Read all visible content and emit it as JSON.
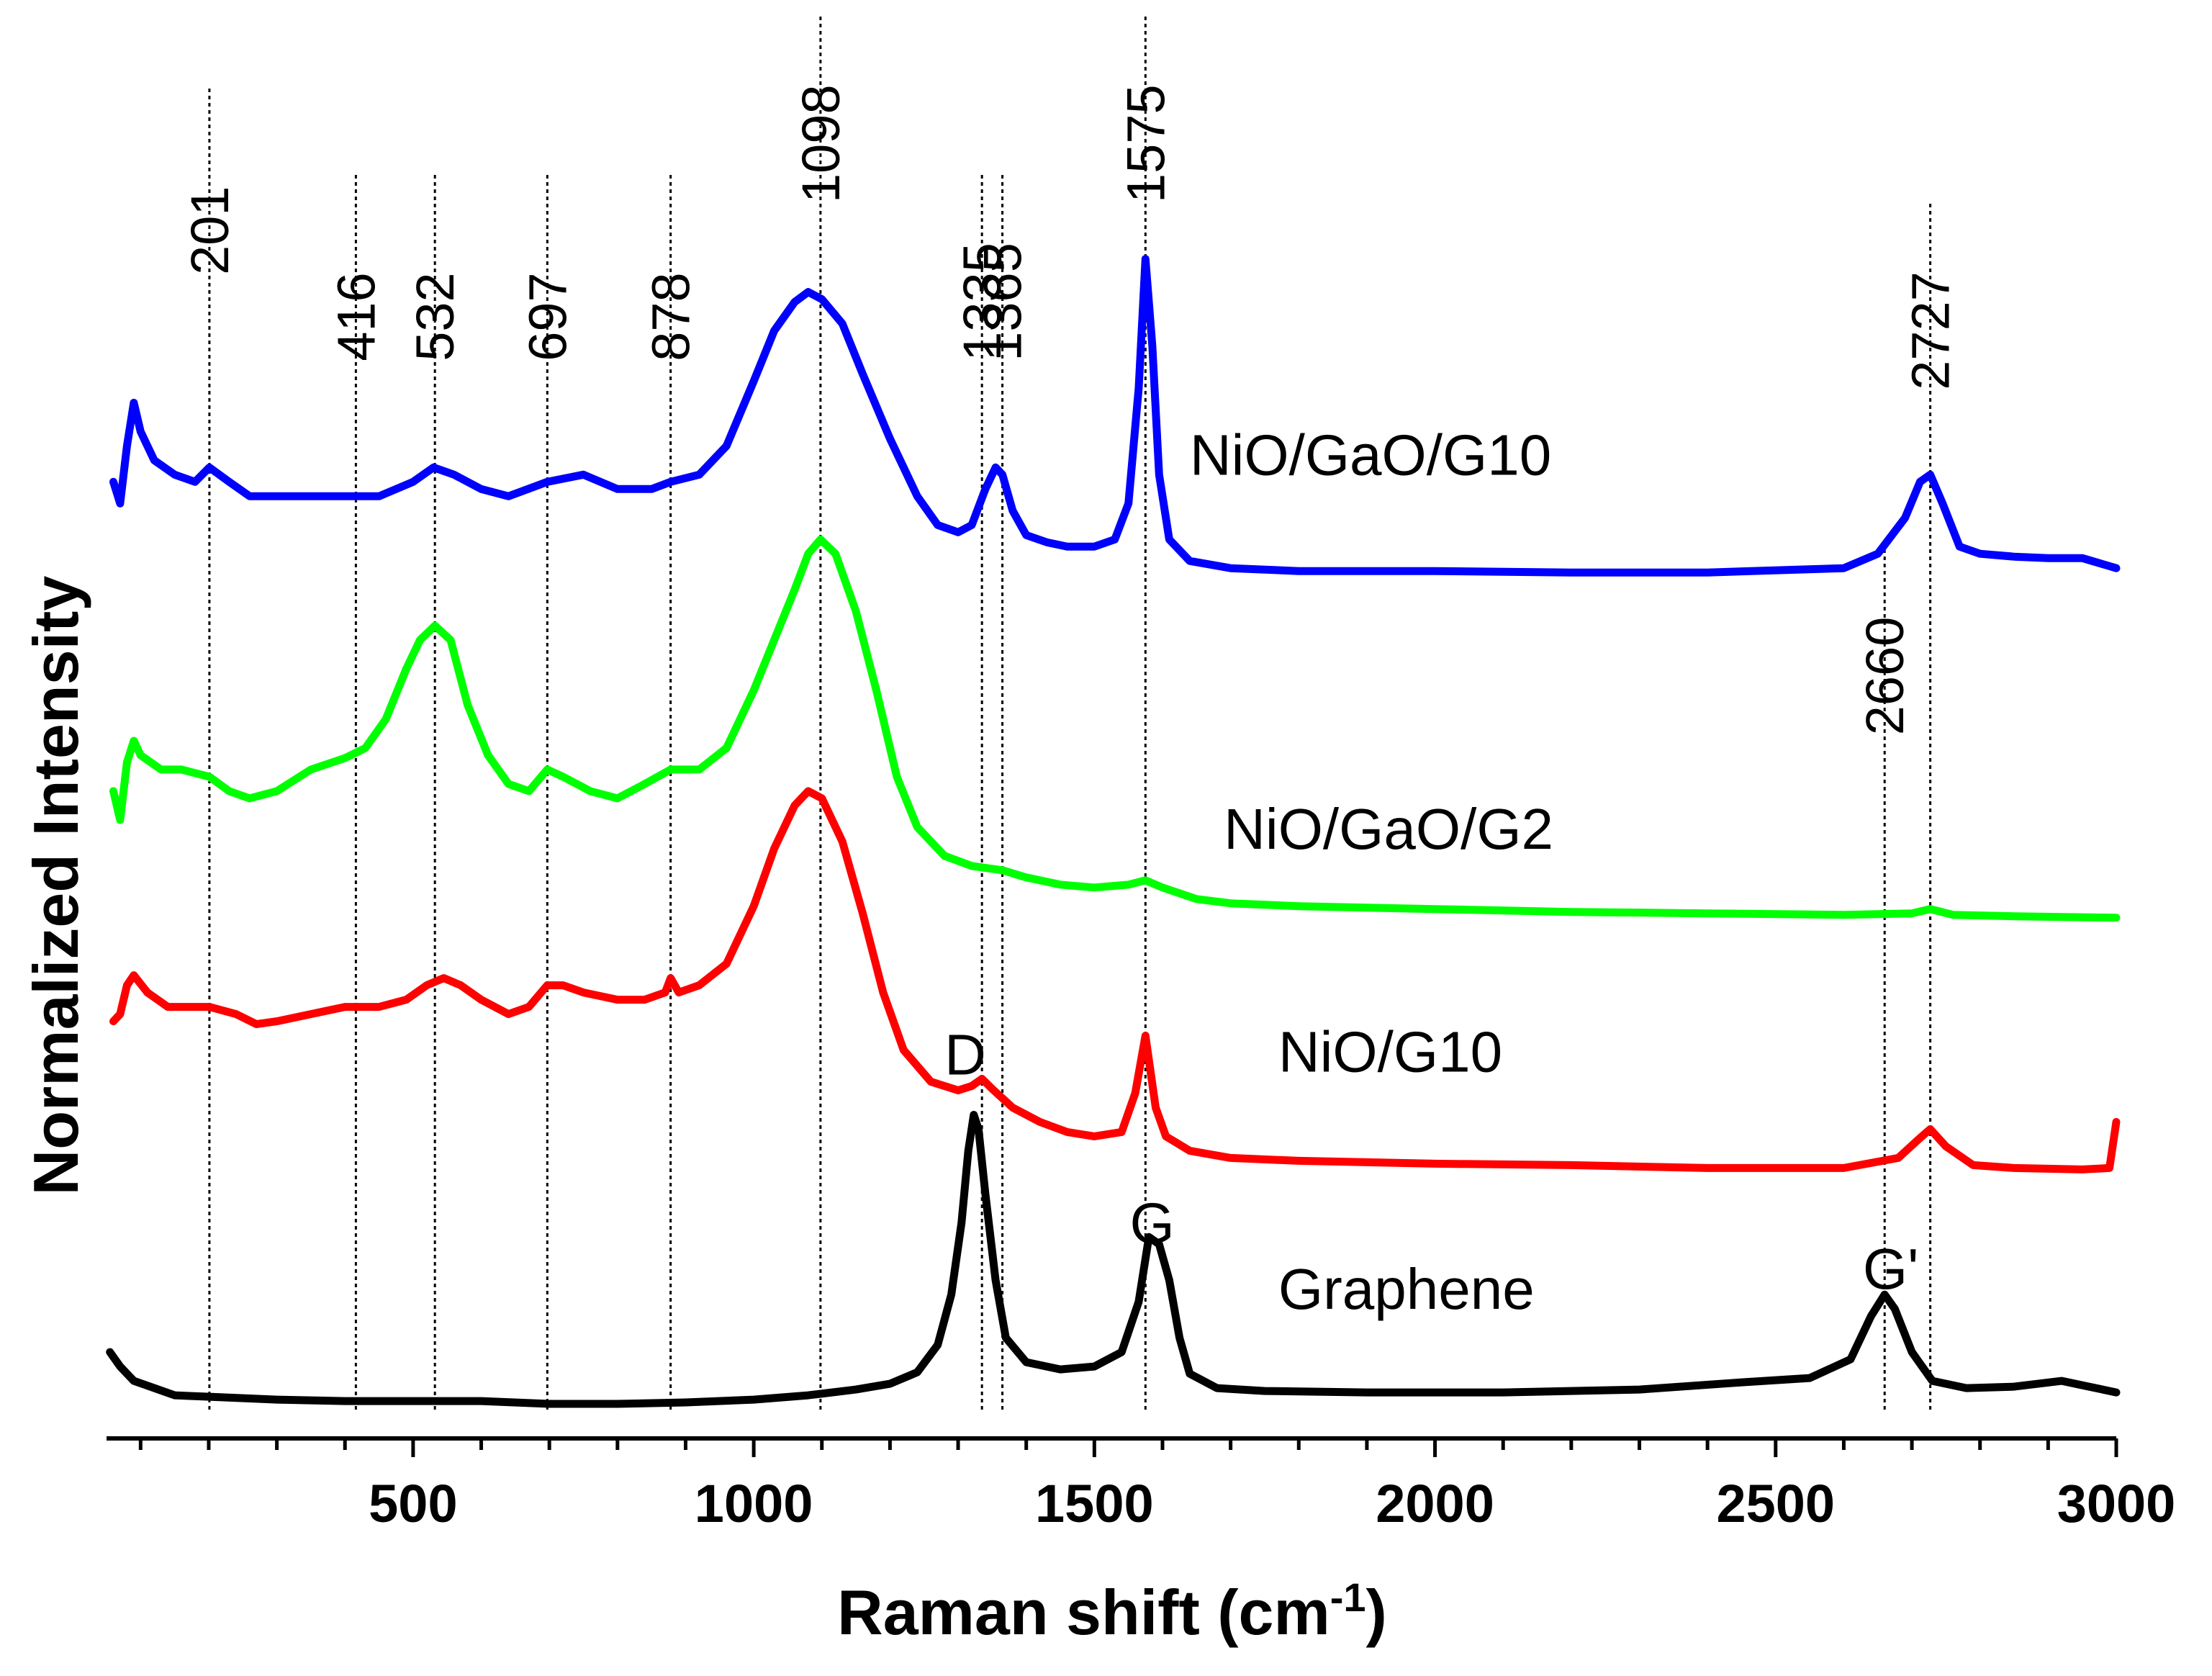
{
  "chart_data": {
    "type": "line",
    "title": "",
    "xlabel": "Raman shift (cm",
    "xlabel_sup": "-1",
    "xlabel_end": ")",
    "ylabel": "Normalized Intensity",
    "xlim": [
      50,
      3000
    ],
    "ylim": [
      0,
      100
    ],
    "x_ticks": [
      500,
      1000,
      1500,
      2000,
      2500,
      3000
    ],
    "x_tick_labels": [
      "500",
      "1000",
      "1500",
      "2000",
      "2500",
      "3000"
    ],
    "x_minor_step": 100,
    "grid": false,
    "colors": {
      "NiO/GaO/G10": "#0000ff",
      "NiO/GaO/G2": "#00ff00",
      "NiO/G10": "#ff0000",
      "Graphene": "#000000"
    },
    "markers": [
      {
        "label": "201",
        "x": 201,
        "top": 94
      },
      {
        "label": "416",
        "x": 416,
        "top": 88
      },
      {
        "label": "532",
        "x": 532,
        "top": 88
      },
      {
        "label": "697",
        "x": 697,
        "top": 88
      },
      {
        "label": "878",
        "x": 878,
        "top": 88
      },
      {
        "label": "1098",
        "x": 1098,
        "top": 99
      },
      {
        "label": "1335",
        "x": 1335,
        "top": 88
      },
      {
        "label": "1365",
        "x": 1365,
        "top": 88
      },
      {
        "label": "1575",
        "x": 1575,
        "top": 99
      },
      {
        "label": "2660",
        "x": 2660,
        "top": 62
      },
      {
        "label": "2727",
        "x": 2727,
        "top": 86
      }
    ],
    "series": [
      {
        "name": "NiO/GaO/G10",
        "label_x": 1640,
        "label_y": 67,
        "points": [
          [
            60,
            66.5
          ],
          [
            70,
            65
          ],
          [
            80,
            69
          ],
          [
            90,
            72
          ],
          [
            100,
            70
          ],
          [
            120,
            68
          ],
          [
            150,
            67
          ],
          [
            180,
            66.5
          ],
          [
            201,
            67.5
          ],
          [
            230,
            66.5
          ],
          [
            260,
            65.5
          ],
          [
            300,
            65.5
          ],
          [
            350,
            65.5
          ],
          [
            400,
            65.5
          ],
          [
            450,
            65.5
          ],
          [
            500,
            66.5
          ],
          [
            530,
            67.5
          ],
          [
            560,
            67
          ],
          [
            600,
            66
          ],
          [
            640,
            65.5
          ],
          [
            697,
            66.5
          ],
          [
            750,
            67
          ],
          [
            800,
            66
          ],
          [
            850,
            66
          ],
          [
            878,
            66.5
          ],
          [
            920,
            67
          ],
          [
            960,
            69
          ],
          [
            1000,
            73.5
          ],
          [
            1030,
            77
          ],
          [
            1060,
            79
          ],
          [
            1080,
            79.7
          ],
          [
            1100,
            79.2
          ],
          [
            1130,
            77.5
          ],
          [
            1160,
            74
          ],
          [
            1200,
            69.5
          ],
          [
            1240,
            65.5
          ],
          [
            1270,
            63.5
          ],
          [
            1300,
            63
          ],
          [
            1320,
            63.5
          ],
          [
            1340,
            66
          ],
          [
            1355,
            67.5
          ],
          [
            1365,
            67
          ],
          [
            1380,
            64.5
          ],
          [
            1400,
            62.8
          ],
          [
            1430,
            62.3
          ],
          [
            1460,
            62
          ],
          [
            1500,
            62
          ],
          [
            1530,
            62.5
          ],
          [
            1550,
            65
          ],
          [
            1565,
            73
          ],
          [
            1575,
            82
          ],
          [
            1585,
            76
          ],
          [
            1595,
            67
          ],
          [
            1610,
            62.5
          ],
          [
            1640,
            61
          ],
          [
            1700,
            60.5
          ],
          [
            1800,
            60.3
          ],
          [
            2000,
            60.3
          ],
          [
            2200,
            60.2
          ],
          [
            2400,
            60.2
          ],
          [
            2600,
            60.5
          ],
          [
            2650,
            61.5
          ],
          [
            2690,
            64
          ],
          [
            2712,
            66.5
          ],
          [
            2727,
            67
          ],
          [
            2745,
            65
          ],
          [
            2770,
            62
          ],
          [
            2800,
            61.5
          ],
          [
            2850,
            61.3
          ],
          [
            2900,
            61.2
          ],
          [
            2950,
            61.2
          ],
          [
            3000,
            60.5
          ]
        ]
      },
      {
        "name": "NiO/GaO/G2",
        "label_x": 1690,
        "label_y": 41,
        "points": [
          [
            60,
            45
          ],
          [
            70,
            43
          ],
          [
            80,
            47
          ],
          [
            90,
            48.5
          ],
          [
            100,
            47.5
          ],
          [
            130,
            46.5
          ],
          [
            160,
            46.5
          ],
          [
            201,
            46
          ],
          [
            230,
            45
          ],
          [
            260,
            44.5
          ],
          [
            300,
            45
          ],
          [
            350,
            46.5
          ],
          [
            400,
            47.3
          ],
          [
            430,
            48
          ],
          [
            460,
            50
          ],
          [
            490,
            53.5
          ],
          [
            510,
            55.5
          ],
          [
            532,
            56.5
          ],
          [
            555,
            55.5
          ],
          [
            580,
            51
          ],
          [
            610,
            47.5
          ],
          [
            640,
            45.5
          ],
          [
            670,
            45
          ],
          [
            697,
            46.5
          ],
          [
            720,
            46
          ],
          [
            760,
            45
          ],
          [
            800,
            44.5
          ],
          [
            840,
            45.5
          ],
          [
            878,
            46.5
          ],
          [
            920,
            46.5
          ],
          [
            960,
            48
          ],
          [
            1000,
            52
          ],
          [
            1030,
            55.5
          ],
          [
            1060,
            59
          ],
          [
            1080,
            61.5
          ],
          [
            1098,
            62.5
          ],
          [
            1120,
            61.5
          ],
          [
            1150,
            57.5
          ],
          [
            1180,
            52
          ],
          [
            1210,
            46
          ],
          [
            1240,
            42.5
          ],
          [
            1280,
            40.5
          ],
          [
            1320,
            39.8
          ],
          [
            1365,
            39.5
          ],
          [
            1400,
            39
          ],
          [
            1450,
            38.5
          ],
          [
            1500,
            38.3
          ],
          [
            1550,
            38.5
          ],
          [
            1575,
            38.8
          ],
          [
            1600,
            38.3
          ],
          [
            1650,
            37.5
          ],
          [
            1700,
            37.2
          ],
          [
            1800,
            37
          ],
          [
            2000,
            36.8
          ],
          [
            2200,
            36.6
          ],
          [
            2400,
            36.5
          ],
          [
            2600,
            36.4
          ],
          [
            2700,
            36.5
          ],
          [
            2727,
            36.8
          ],
          [
            2760,
            36.4
          ],
          [
            2850,
            36.3
          ],
          [
            3000,
            36.2
          ]
        ]
      },
      {
        "name": "NiO/G10",
        "label_x": 1770,
        "label_y": 25.5,
        "points": [
          [
            60,
            29
          ],
          [
            70,
            29.5
          ],
          [
            80,
            31.5
          ],
          [
            90,
            32.2
          ],
          [
            110,
            31
          ],
          [
            140,
            30
          ],
          [
            170,
            30
          ],
          [
            201,
            30
          ],
          [
            240,
            29.5
          ],
          [
            270,
            28.8
          ],
          [
            300,
            29
          ],
          [
            350,
            29.5
          ],
          [
            400,
            30
          ],
          [
            450,
            30
          ],
          [
            490,
            30.5
          ],
          [
            520,
            31.5
          ],
          [
            545,
            32
          ],
          [
            570,
            31.5
          ],
          [
            600,
            30.5
          ],
          [
            640,
            29.5
          ],
          [
            670,
            30
          ],
          [
            697,
            31.5
          ],
          [
            720,
            31.5
          ],
          [
            750,
            31
          ],
          [
            800,
            30.5
          ],
          [
            840,
            30.5
          ],
          [
            870,
            31
          ],
          [
            878,
            32
          ],
          [
            890,
            31
          ],
          [
            920,
            31.5
          ],
          [
            960,
            33
          ],
          [
            1000,
            37
          ],
          [
            1030,
            41
          ],
          [
            1060,
            44
          ],
          [
            1080,
            45
          ],
          [
            1100,
            44.5
          ],
          [
            1130,
            41.5
          ],
          [
            1160,
            36.5
          ],
          [
            1190,
            31
          ],
          [
            1220,
            27
          ],
          [
            1260,
            24.8
          ],
          [
            1300,
            24.2
          ],
          [
            1320,
            24.5
          ],
          [
            1335,
            25
          ],
          [
            1350,
            24.3
          ],
          [
            1380,
            23
          ],
          [
            1420,
            22
          ],
          [
            1460,
            21.3
          ],
          [
            1500,
            21
          ],
          [
            1540,
            21.3
          ],
          [
            1560,
            24
          ],
          [
            1575,
            28
          ],
          [
            1590,
            23
          ],
          [
            1605,
            21
          ],
          [
            1640,
            20
          ],
          [
            1700,
            19.5
          ],
          [
            1800,
            19.3
          ],
          [
            2000,
            19.1
          ],
          [
            2200,
            19
          ],
          [
            2400,
            18.8
          ],
          [
            2600,
            18.8
          ],
          [
            2680,
            19.5
          ],
          [
            2710,
            20.8
          ],
          [
            2727,
            21.5
          ],
          [
            2750,
            20.3
          ],
          [
            2790,
            19
          ],
          [
            2850,
            18.8
          ],
          [
            2950,
            18.7
          ],
          [
            2990,
            18.8
          ],
          [
            3000,
            22
          ]
        ]
      },
      {
        "name": "Graphene",
        "label_x": 1770,
        "label_y": 9,
        "points": [
          [
            55,
            6
          ],
          [
            70,
            5
          ],
          [
            90,
            4
          ],
          [
            120,
            3.5
          ],
          [
            150,
            3
          ],
          [
            201,
            2.9
          ],
          [
            300,
            2.7
          ],
          [
            400,
            2.6
          ],
          [
            500,
            2.6
          ],
          [
            600,
            2.6
          ],
          [
            700,
            2.4
          ],
          [
            800,
            2.4
          ],
          [
            900,
            2.5
          ],
          [
            1000,
            2.7
          ],
          [
            1080,
            3
          ],
          [
            1150,
            3.4
          ],
          [
            1200,
            3.8
          ],
          [
            1240,
            4.6
          ],
          [
            1270,
            6.5
          ],
          [
            1290,
            10
          ],
          [
            1305,
            15
          ],
          [
            1315,
            20
          ],
          [
            1323,
            22.5
          ],
          [
            1330,
            21.5
          ],
          [
            1340,
            17
          ],
          [
            1355,
            11
          ],
          [
            1370,
            7
          ],
          [
            1400,
            5.3
          ],
          [
            1450,
            4.8
          ],
          [
            1500,
            5
          ],
          [
            1540,
            6
          ],
          [
            1565,
            9.5
          ],
          [
            1580,
            14
          ],
          [
            1595,
            13.5
          ],
          [
            1610,
            11
          ],
          [
            1625,
            7
          ],
          [
            1640,
            4.5
          ],
          [
            1680,
            3.5
          ],
          [
            1750,
            3.3
          ],
          [
            1900,
            3.2
          ],
          [
            2100,
            3.2
          ],
          [
            2300,
            3.4
          ],
          [
            2450,
            3.9
          ],
          [
            2550,
            4.2
          ],
          [
            2610,
            5.5
          ],
          [
            2640,
            8.5
          ],
          [
            2660,
            10
          ],
          [
            2675,
            9
          ],
          [
            2700,
            6
          ],
          [
            2730,
            4
          ],
          [
            2780,
            3.5
          ],
          [
            2850,
            3.6
          ],
          [
            2920,
            4
          ],
          [
            2960,
            3.6
          ],
          [
            3000,
            3.2
          ]
        ]
      }
    ],
    "peak_labels": [
      {
        "label": "D",
        "x": 1280,
        "y": 25.3
      },
      {
        "label": "G",
        "x": 1552,
        "y": 13.6
      },
      {
        "label": "G'",
        "x": 2628,
        "y": 10.4
      }
    ]
  }
}
